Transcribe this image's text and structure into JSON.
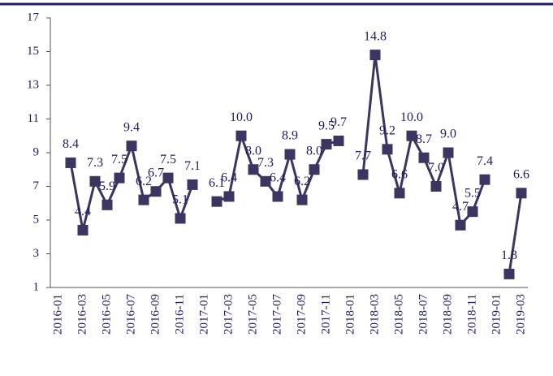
{
  "chart_data": {
    "type": "line",
    "categories": [
      "2016-01",
      null,
      "2016-03",
      null,
      "2016-05",
      null,
      "2016-07",
      null,
      "2016-09",
      null,
      "2016-11",
      null,
      "2017-01",
      null,
      "2017-03",
      null,
      "2017-05",
      null,
      "2017-07",
      null,
      "2017-09",
      null,
      "2017-11",
      null,
      "2018-01",
      null,
      "2018-03",
      null,
      "2018-05",
      null,
      "2018-07",
      null,
      "2018-09",
      null,
      "2018-11",
      null,
      "2019-01",
      null,
      "2019-03"
    ],
    "series": [
      {
        "color": "#3b3562",
        "values": [
          null,
          8.4,
          4.4,
          7.3,
          5.9,
          7.5,
          9.4,
          6.2,
          6.7,
          7.5,
          5.1,
          7.1,
          null,
          6.1,
          6.4,
          10.0,
          8.0,
          7.3,
          6.4,
          8.9,
          6.2,
          8.0,
          9.5,
          9.7,
          null,
          7.7,
          14.8,
          9.2,
          6.6,
          10.0,
          8.7,
          7.0,
          9.0,
          4.7,
          5.5,
          7.4,
          null,
          1.8,
          6.6
        ],
        "value_labels": [
          null,
          "8.4",
          "4.4",
          "7.3",
          "5.9",
          "7.5",
          "9.4",
          "6.2",
          "6.7",
          "7.5",
          "5.1",
          "7.1",
          null,
          "6.1",
          "6.4",
          "10.0",
          "8.0",
          "7.3",
          "6.4",
          "8.9",
          "6.2",
          "8.0",
          "9.5",
          "9.7",
          null,
          "7.7",
          "14.8",
          "9.2",
          "6.6",
          "10.0",
          "8.7",
          "7.0",
          "9.0",
          "4.7",
          "5.5",
          "7.4",
          null,
          "1.8",
          "6.6"
        ]
      }
    ],
    "ylim": [
      1,
      17
    ],
    "yticks": [
      1,
      3,
      5,
      7,
      9,
      11,
      13,
      15,
      17
    ]
  }
}
